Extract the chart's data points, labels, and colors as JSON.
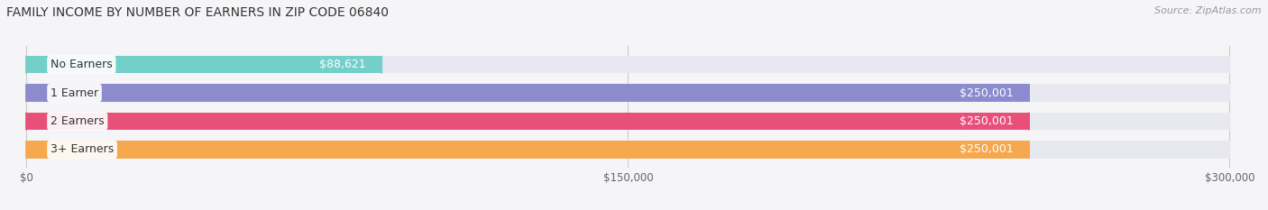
{
  "title": "FAMILY INCOME BY NUMBER OF EARNERS IN ZIP CODE 06840",
  "source": "Source: ZipAtlas.com",
  "categories": [
    "No Earners",
    "1 Earner",
    "2 Earners",
    "3+ Earners"
  ],
  "values": [
    88621,
    250001,
    250001,
    250001
  ],
  "bar_colors": [
    "#72cfc9",
    "#8b8bce",
    "#e8507a",
    "#f5a84e"
  ],
  "bar_bg_color": "#e8e8f0",
  "value_labels": [
    "$88,621",
    "$250,001",
    "$250,001",
    "$250,001"
  ],
  "value_label_color": "#ffffff",
  "no_earner_value_color": "#555555",
  "xlim": [
    0,
    300000
  ],
  "xticks": [
    0,
    150000,
    300000
  ],
  "xticklabels": [
    "$0",
    "$150,000",
    "$300,000"
  ],
  "background_color": "#f5f5f8",
  "bar_height": 0.62,
  "title_fontsize": 10,
  "source_fontsize": 8,
  "cat_label_fontsize": 9,
  "value_fontsize": 9
}
